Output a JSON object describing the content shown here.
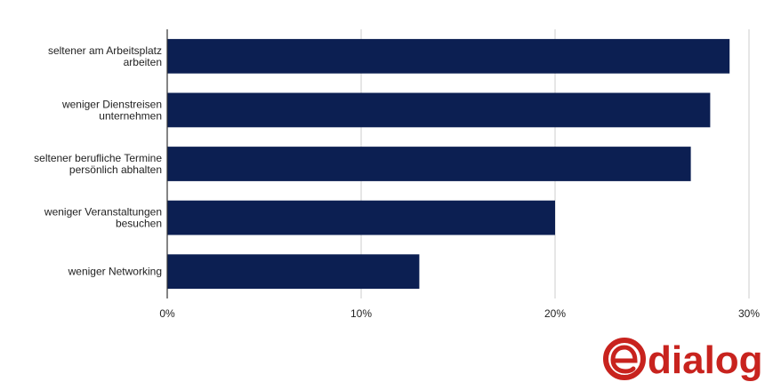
{
  "chart_data": {
    "type": "bar",
    "orientation": "horizontal",
    "categories": [
      [
        "seltener am Arbeitsplatz",
        "arbeiten"
      ],
      [
        "weniger Dienstreisen",
        "unternehmen"
      ],
      [
        "seltener berufliche Termine",
        "persönlich abhalten"
      ],
      [
        "weniger Veranstaltungen",
        "besuchen"
      ],
      [
        "weniger Networking"
      ]
    ],
    "values": [
      29,
      28,
      27,
      20,
      13
    ],
    "xlim": [
      0,
      30
    ],
    "xticks": [
      0,
      10,
      20,
      30
    ],
    "tick_labels": [
      "0%",
      "10%",
      "20%",
      "30%"
    ],
    "bar_color": "#0c1f52",
    "grid": true,
    "grid_color": "#cccccc",
    "legend": "none"
  },
  "logo": {
    "text": "dialog",
    "mark": "e",
    "color": "#c8231e"
  }
}
